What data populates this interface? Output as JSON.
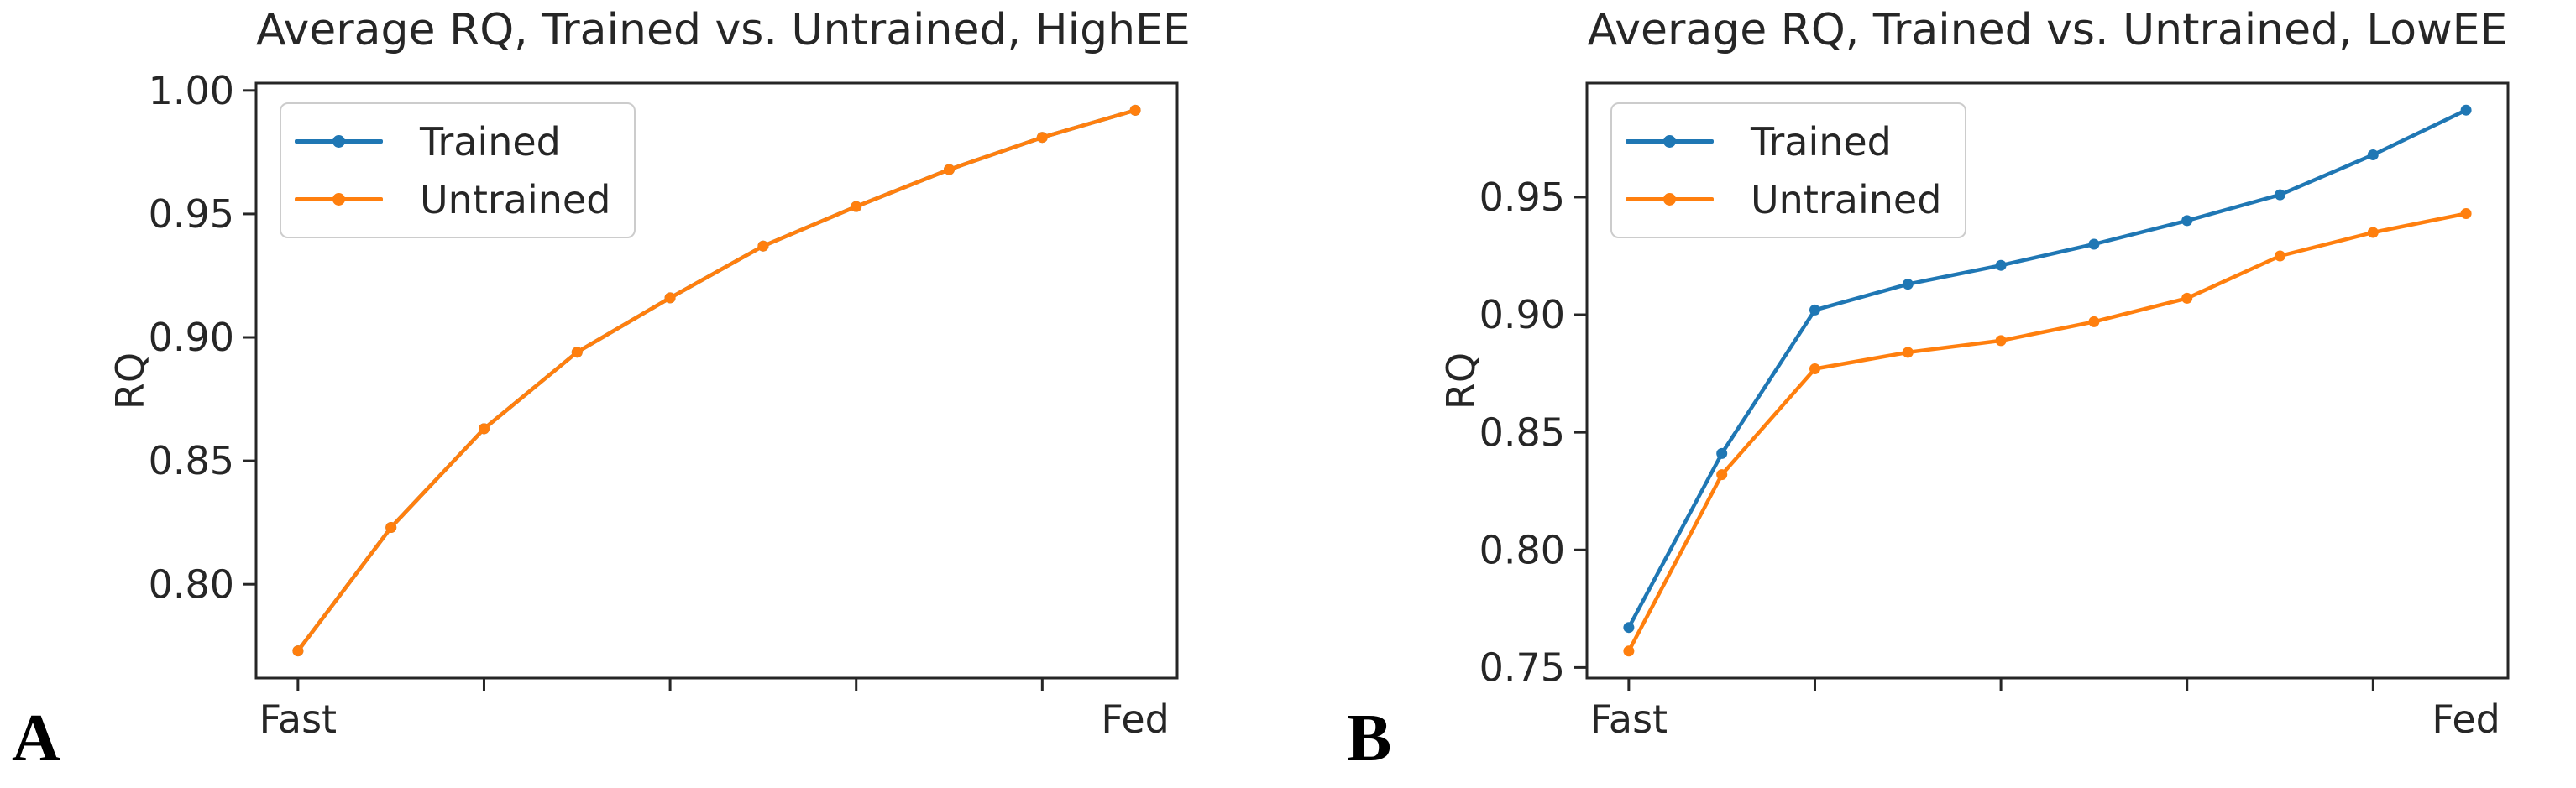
{
  "figure": {
    "background": "#ffffff",
    "text_color": "#262626",
    "axis_color": "#262626"
  },
  "panel_letters": [
    "A",
    "B"
  ],
  "chart_data": [
    {
      "type": "line",
      "title": "Average RQ, Trained vs. Untrained, HighEE",
      "xlabel": "",
      "ylabel": "RQ",
      "x": [
        0,
        1,
        2,
        3,
        4,
        5,
        6,
        7,
        8,
        9
      ],
      "x_tick_positions": [
        0,
        2,
        4,
        6,
        8
      ],
      "x_end_labels": [
        "Fast",
        "Fed"
      ],
      "yticks": [
        0.8,
        0.85,
        0.9,
        0.95,
        1.0
      ],
      "ylim": [
        0.762,
        1.003
      ],
      "xlim": [
        -0.45,
        9.45
      ],
      "grid": false,
      "legend_position": "upper-left",
      "series": [
        {
          "name": "Trained",
          "color": "#1f77b4",
          "values": [
            0.773,
            0.823,
            0.863,
            0.894,
            0.916,
            0.937,
            0.953,
            0.968,
            0.981,
            0.992
          ]
        },
        {
          "name": "Untrained",
          "color": "#ff7f0e",
          "values": [
            0.773,
            0.823,
            0.863,
            0.894,
            0.916,
            0.937,
            0.953,
            0.968,
            0.981,
            0.992
          ]
        }
      ]
    },
    {
      "type": "line",
      "title": "Average RQ, Trained vs. Untrained, LowEE",
      "xlabel": "",
      "ylabel": "RQ",
      "x": [
        0,
        1,
        2,
        3,
        4,
        5,
        6,
        7,
        8,
        9
      ],
      "x_tick_positions": [
        0,
        2,
        4,
        6,
        8
      ],
      "x_end_labels": [
        "Fast",
        "Fed"
      ],
      "yticks": [
        0.75,
        0.8,
        0.85,
        0.9,
        0.95
      ],
      "ylim": [
        0.7455,
        0.9985
      ],
      "xlim": [
        -0.45,
        9.45
      ],
      "grid": false,
      "legend_position": "upper-left",
      "series": [
        {
          "name": "Trained",
          "color": "#1f77b4",
          "values": [
            0.767,
            0.841,
            0.902,
            0.913,
            0.921,
            0.93,
            0.94,
            0.951,
            0.968,
            0.987
          ]
        },
        {
          "name": "Untrained",
          "color": "#ff7f0e",
          "values": [
            0.757,
            0.832,
            0.877,
            0.884,
            0.889,
            0.897,
            0.907,
            0.925,
            0.935,
            0.943
          ]
        }
      ]
    }
  ]
}
